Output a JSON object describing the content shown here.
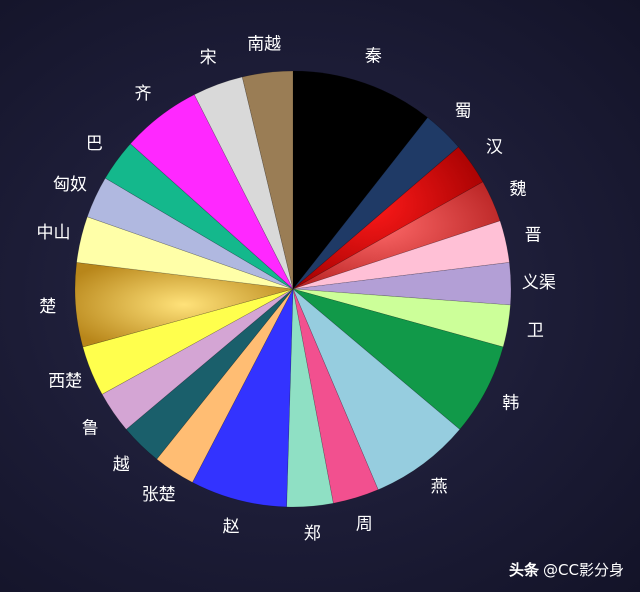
{
  "chart_data": {
    "type": "pie",
    "title": "",
    "slices": [
      {
        "label": "秦",
        "value": 34,
        "color": "#000000"
      },
      {
        "label": "蜀",
        "value": 10,
        "color": "#1f3a66"
      },
      {
        "label": "汉",
        "value": 10,
        "color": "#d10000"
      },
      {
        "label": "魏",
        "value": 10,
        "color": "#e03b3b"
      },
      {
        "label": "晋",
        "value": 10,
        "color": "#ffc0d6"
      },
      {
        "label": "义渠",
        "value": 10,
        "color": "#b39fd6"
      },
      {
        "label": "卫",
        "value": 10,
        "color": "#ccff99"
      },
      {
        "label": "韩",
        "value": 22,
        "color": "#119949"
      },
      {
        "label": "燕",
        "value": 24,
        "color": "#96cddf"
      },
      {
        "label": "周",
        "value": 11,
        "color": "#f2508f"
      },
      {
        "label": "郑",
        "value": 11,
        "color": "#8fe0c4"
      },
      {
        "label": "赵",
        "value": 23,
        "color": "#3333ff"
      },
      {
        "label": "张楚",
        "value": 10,
        "color": "#ffbd73"
      },
      {
        "label": "越",
        "value": 10,
        "color": "#1a5f6b"
      },
      {
        "label": "鲁",
        "value": 10,
        "color": "#d4a5d4"
      },
      {
        "label": "西楚",
        "value": 12,
        "color": "#ffff4d"
      },
      {
        "label": "楚",
        "value": 20,
        "color": "#d9a62e"
      },
      {
        "label": "中山",
        "value": 11,
        "color": "#ffffa8"
      },
      {
        "label": "匈奴",
        "value": 10,
        "color": "#b0b8e0"
      },
      {
        "label": "巴",
        "value": 10,
        "color": "#14b88c"
      },
      {
        "label": "齐",
        "value": 19,
        "color": "#ff28ff"
      },
      {
        "label": "宋",
        "value": 12,
        "color": "#d9d9d9"
      },
      {
        "label": "南越",
        "value": 12,
        "color": "#9a7d55"
      }
    ],
    "legend": "none"
  },
  "watermark": {
    "brand": "头条",
    "handle": "@CC影分身"
  }
}
